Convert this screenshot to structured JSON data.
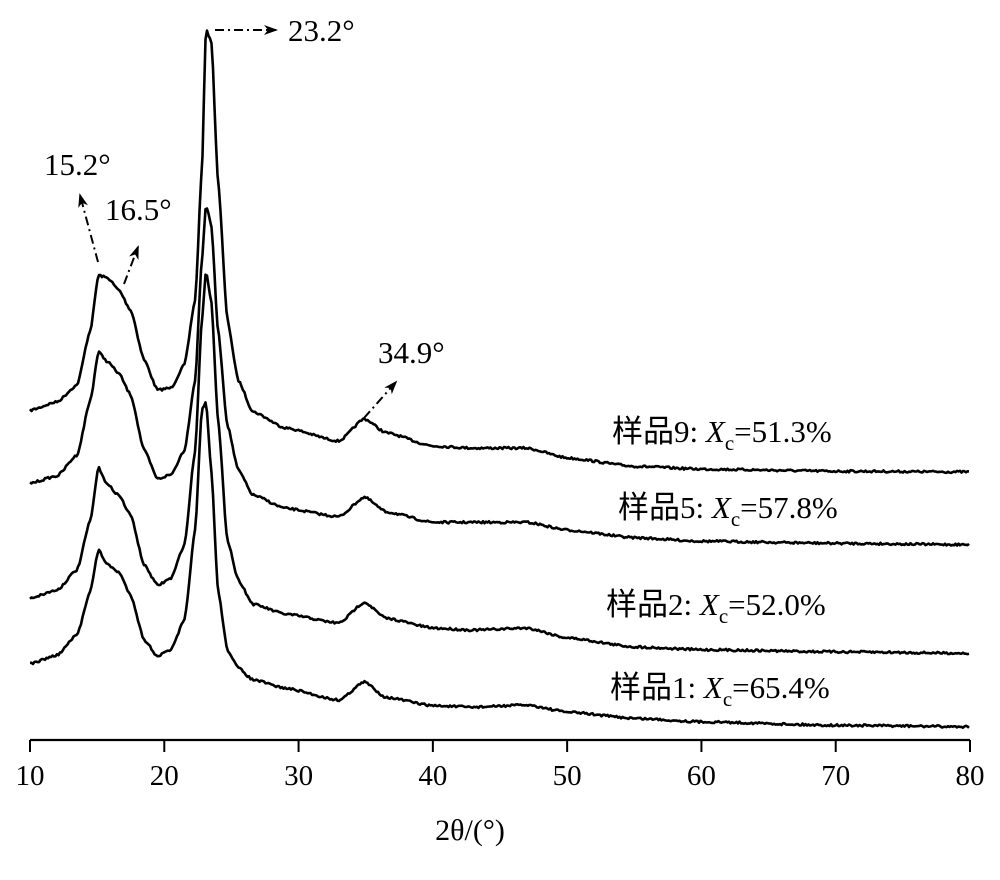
{
  "chart_data": {
    "type": "line",
    "title": "",
    "xlabel": "2θ/(°)",
    "ylabel": "",
    "xlim": [
      10,
      80
    ],
    "ylim": [
      0,
      105
    ],
    "y_units": "a.u. (stacked, offset)",
    "grid": false,
    "xticks": [
      "10",
      "20",
      "30",
      "40",
      "50",
      "60",
      "70",
      "80"
    ],
    "x": [
      10,
      12,
      13.5,
      14.5,
      15.1,
      15.8,
      16.6,
      17.5,
      18.5,
      19.5,
      20.5,
      21.5,
      22.3,
      22.8,
      23.1,
      23.5,
      24,
      24.7,
      25.5,
      26.6,
      29,
      33,
      34.9,
      36.5,
      40,
      43,
      47,
      50,
      55,
      60,
      70,
      80
    ],
    "series": [
      {
        "name": "样品9",
        "xc_value": "51.3%",
        "values": [
          47.1,
          48.3,
          50.7,
          58.6,
          66.4,
          66.0,
          64.3,
          61.4,
          54.3,
          50.0,
          50.3,
          53.6,
          62.9,
          81.4,
          101.4,
          100.0,
          80.0,
          60.0,
          51.4,
          46.9,
          44.6,
          42.7,
          45.9,
          43.9,
          42.0,
          41.7,
          41.7,
          40.3,
          39.1,
          38.7,
          38.4,
          38.3
        ]
      },
      {
        "name": "样品5",
        "xc_value": "57.8%",
        "values": [
          36.7,
          37.7,
          40.7,
          48.6,
          55.4,
          54.0,
          52.4,
          49.3,
          41.4,
          37.3,
          37.9,
          41.4,
          51.4,
          68.6,
          76.4,
          73.6,
          58.6,
          45.0,
          38.6,
          35.0,
          33.1,
          31.9,
          34.7,
          32.6,
          31.1,
          31.1,
          31.1,
          30.0,
          28.9,
          28.4,
          28.1,
          27.9
        ]
      },
      {
        "name": "样品2",
        "xc_value": "52.0%",
        "values": [
          20.3,
          21.4,
          24.3,
          31.4,
          38.9,
          36.4,
          35.0,
          32.1,
          25.0,
          22.1,
          23.1,
          27.9,
          41.4,
          60.0,
          66.9,
          62.9,
          45.7,
          28.6,
          22.9,
          19.4,
          18.0,
          16.7,
          19.7,
          17.4,
          16.0,
          15.7,
          16.0,
          14.6,
          13.3,
          12.9,
          12.6,
          12.4
        ]
      },
      {
        "name": "样品1",
        "xc_value": "65.4%",
        "values": [
          10.9,
          12.1,
          15.0,
          21.4,
          27.1,
          25.0,
          24.0,
          20.7,
          14.3,
          12.0,
          12.9,
          17.1,
          30.0,
          47.1,
          48.3,
          38.6,
          21.4,
          12.9,
          10.3,
          8.6,
          7.4,
          5.7,
          8.3,
          6.1,
          4.9,
          4.7,
          5.0,
          4.0,
          3.1,
          2.6,
          2.1,
          1.9
        ]
      }
    ],
    "label_parts": {
      "sep": ": ",
      "symbol": "X",
      "subscript": "c",
      "eq": "="
    },
    "annotations": [
      {
        "text": "23.2°",
        "x": 23.2
      },
      {
        "text": "15.2°",
        "x": 15.2
      },
      {
        "text": "16.5°",
        "x": 16.5
      },
      {
        "text": "34.9°",
        "x": 34.9
      }
    ]
  }
}
